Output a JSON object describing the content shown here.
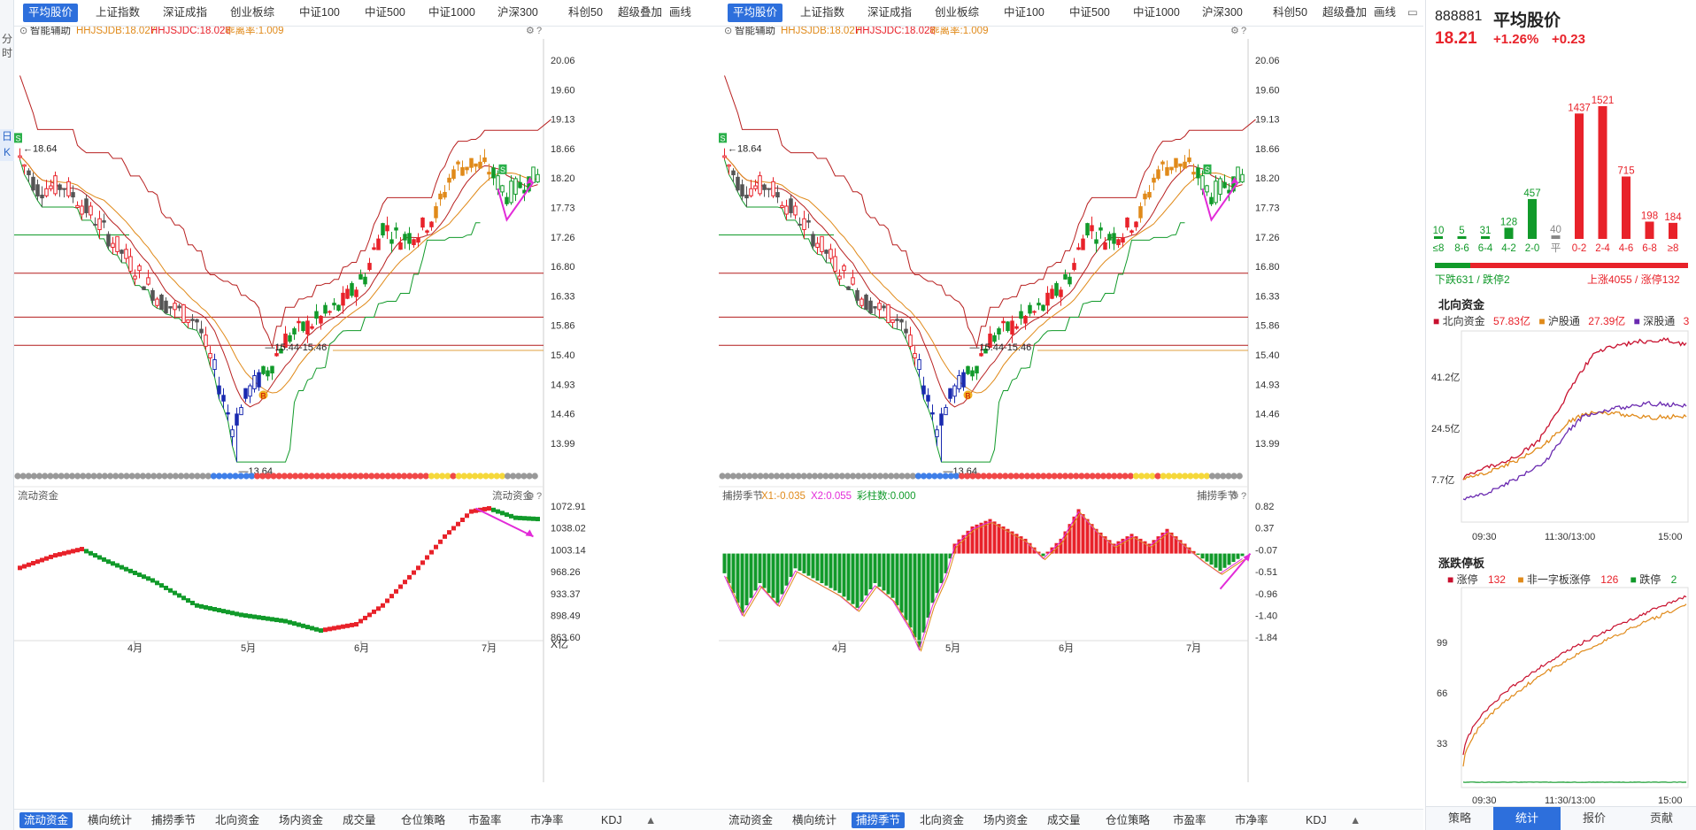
{
  "side_tabs": [
    "分",
    "时",
    "日",
    "K"
  ],
  "top_tabs": [
    "平均股价",
    "上证指数",
    "深证成指",
    "创业板综",
    "中证100",
    "中证500",
    "中证1000",
    "沪深300",
    "科创50",
    "超级叠加",
    "画线"
  ],
  "bottom_tabs": [
    "流动资金",
    "横向统计",
    "捕捞季节",
    "北向资金",
    "场内资金",
    "成交量",
    "仓位策略",
    "市盈率",
    "市净率",
    "KDJ"
  ],
  "main_legend": {
    "title": "智能辅助",
    "db": "HHJSJDB:18.027",
    "dc": "HHJSJDC:18.028",
    "dev": "乖离率:1.009"
  },
  "price_axis": [
    "20.06",
    "19.60",
    "19.13",
    "18.66",
    "18.20",
    "17.73",
    "17.26",
    "16.80",
    "16.33",
    "15.86",
    "15.40",
    "14.93",
    "14.46",
    "13.99"
  ],
  "annotations": {
    "high": "18.64",
    "low": "13.64",
    "range": "15.44-15.46",
    "buy": "B",
    "sell": "S"
  },
  "months": [
    "4月",
    "5月",
    "6月",
    "7月"
  ],
  "left_panel": {
    "active_top_tab": 0,
    "active_bottom_tab": 0,
    "indicator_title": "流动资金",
    "indicator_right_label": "流动资金",
    "indicator_axis": [
      "1072.91",
      "1038.02",
      "1003.14",
      "968.26",
      "933.37",
      "898.49",
      "863.60"
    ],
    "indicator_unit": "X亿"
  },
  "right_chart_panel": {
    "active_top_tab": 0,
    "active_bottom_tab": 2,
    "indicator_title": "捕捞季节",
    "indicator_right_label": "捕捞季节",
    "x1": "X1:-0.035",
    "x2": "X2:0.055",
    "bars": "彩柱数:0.000",
    "indicator_axis": [
      "0.82",
      "0.37",
      "-0.07",
      "-0.51",
      "-0.96",
      "-1.40",
      "-1.84"
    ]
  },
  "quote": {
    "code": "888881",
    "name": "平均股价",
    "price": "18.21",
    "pct": "+1.26%",
    "chg": "+0.23",
    "dist_labels": [
      "≤8",
      "8-6",
      "6-4",
      "4-2",
      "2-0",
      "平",
      "0-2",
      "2-4",
      "4-6",
      "6-8",
      "≥8"
    ],
    "dist_values": [
      10,
      5,
      31,
      128,
      457,
      40,
      1437,
      1521,
      715,
      198,
      184
    ],
    "down_text": "下跌631 / 跌停2",
    "up_text": "上涨4055 / 涨停132"
  },
  "north": {
    "title": "北向资金",
    "legend": [
      "北向资金",
      "57.83亿",
      "沪股通",
      "27.39亿",
      "深股通",
      "3"
    ],
    "yaxis": [
      "41.2亿",
      "24.5亿",
      "7.7亿"
    ],
    "xaxis": [
      "09:30",
      "11:30/13:00",
      "15:00"
    ]
  },
  "limit": {
    "title": "涨跌停板",
    "legend": [
      "涨停",
      "132",
      "非一字板涨停",
      "126",
      "跌停",
      "2"
    ],
    "yaxis": [
      "99",
      "66",
      "33"
    ],
    "xaxis": [
      "09:30",
      "11:30/13:00",
      "15:00"
    ]
  },
  "rp_tabs": [
    "策略",
    "统计",
    "报价",
    "贡献"
  ],
  "colors": {
    "up": "#e8222a",
    "down": "#119a2a",
    "accent": "#2d6fdc",
    "orange": "#e08a1a",
    "magenta": "#e22bd8",
    "navy": "#1a2ab0"
  }
}
